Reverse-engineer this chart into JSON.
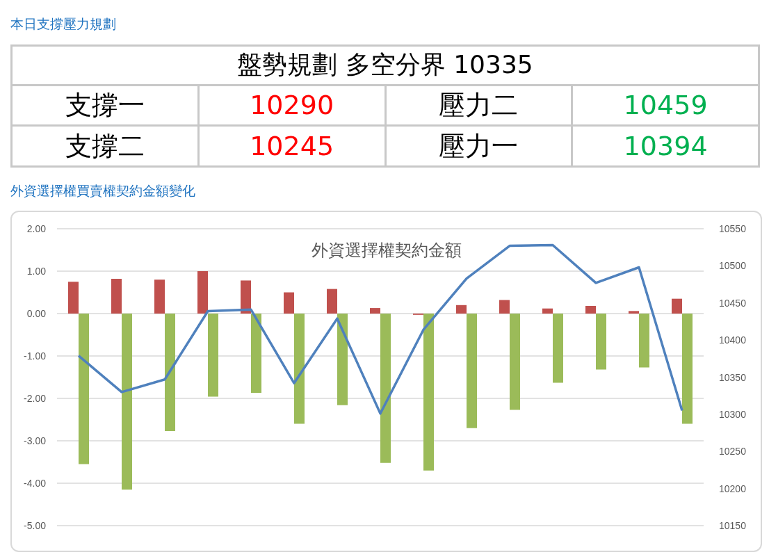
{
  "chart_data": [
    {
      "type": "other",
      "title": "本日支撐壓力規劃",
      "annotations": [
        "盤勢規劃 多空分界 10335",
        "支撐一",
        "10290",
        "壓力二",
        "10459",
        "支撐二",
        "10245",
        "壓力一",
        "10394"
      ]
    },
    {
      "type": "bar",
      "title": "外資選擇權買賣權契約金額變化",
      "subtitle": "外資選擇權契約金額",
      "categories": [
        null,
        null,
        null,
        null,
        null,
        null,
        null,
        null,
        null,
        null,
        null,
        null,
        null,
        null,
        null
      ],
      "series": [
        {
          "type": "bar",
          "color": "#c0504d",
          "values": [
            0.75,
            0.82,
            0.8,
            1.0,
            0.78,
            0.5,
            0.58,
            0.13,
            -0.03,
            0.2,
            0.32,
            0.12,
            0.18,
            0.06,
            0.35
          ]
        },
        {
          "type": "bar",
          "color": "#9bbb59",
          "values": [
            -3.55,
            -4.15,
            -2.77,
            -1.96,
            -1.87,
            -2.6,
            -2.16,
            -3.52,
            -3.7,
            -2.7,
            -2.27,
            -1.63,
            -1.32,
            -1.27,
            -2.6
          ]
        },
        {
          "type": "line",
          "axis": "y2",
          "color": "#4f81bd",
          "values": [
            10379,
            10330,
            10347,
            10439,
            10441,
            10342,
            10429,
            10301,
            10414,
            10483,
            10527,
            10528,
            10477,
            10498,
            10305
          ]
        }
      ],
      "ylim": [
        -5,
        2
      ],
      "yticks": [
        {
          "value": -5,
          "label": "-5.00"
        },
        {
          "value": -4,
          "label": "-4.00"
        },
        {
          "value": -3,
          "label": "-3.00"
        },
        {
          "value": -2,
          "label": "-2.00"
        },
        {
          "value": -1,
          "label": "-1.00"
        },
        {
          "value": 0,
          "label": "0.00"
        },
        {
          "value": 1,
          "label": "1.00"
        },
        {
          "value": 2,
          "label": "2.00"
        }
      ],
      "y2lim": [
        10150,
        10550
      ],
      "y2ticks": [
        10150,
        10200,
        10250,
        10300,
        10350,
        10400,
        10450,
        10500,
        10550
      ],
      "grid": "y",
      "marker": "none",
      "line_style": "solid"
    }
  ]
}
